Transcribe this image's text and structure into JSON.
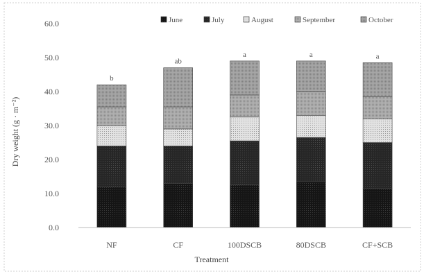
{
  "chart_data": {
    "type": "bar",
    "stacked": true,
    "categories": [
      "NF",
      "CF",
      "100DSCB",
      "80DSCB",
      "CF+SCB"
    ],
    "series": [
      {
        "name": "June",
        "values": [
          12.0,
          13.0,
          12.5,
          13.5,
          11.5
        ]
      },
      {
        "name": "July",
        "values": [
          12.0,
          11.0,
          13.0,
          13.0,
          13.5
        ]
      },
      {
        "name": "August",
        "values": [
          6.0,
          5.0,
          7.0,
          6.5,
          7.0
        ]
      },
      {
        "name": "September",
        "values": [
          5.5,
          6.5,
          6.5,
          7.0,
          6.5
        ]
      },
      {
        "name": "October",
        "values": [
          6.5,
          11.5,
          10.0,
          9.0,
          10.0
        ]
      }
    ],
    "significance": [
      "b",
      "ab",
      "a",
      "a",
      "a"
    ],
    "title": "",
    "xlabel": "Treatment",
    "ylabel": "Dry weight (g · m⁻²)",
    "ylim": [
      0,
      60
    ],
    "yticks": [
      "0.0",
      "10.0",
      "20.0",
      "30.0",
      "40.0",
      "50.0",
      "60.0"
    ],
    "legend_position": "top-right",
    "grid": false,
    "colors": {
      "June": "#1a1a1a",
      "July": "#2c2c2c",
      "August": "#d4d4d4",
      "September": "#9a9a9a",
      "October": "#9a9a9a"
    }
  }
}
